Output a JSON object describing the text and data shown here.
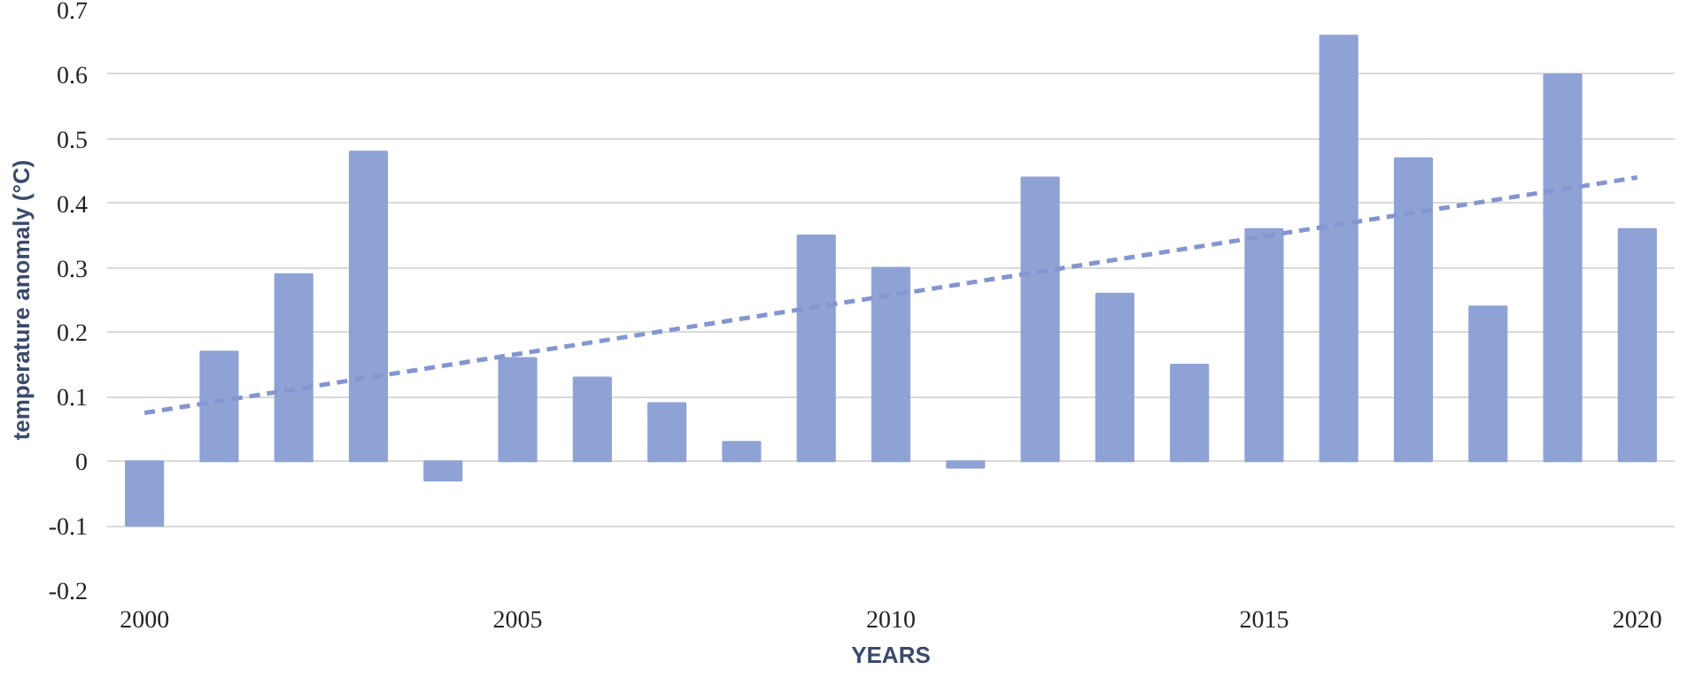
{
  "chart_data": {
    "type": "bar",
    "xlabel": "YEARS",
    "ylabel": "temperature anomaly (°C)",
    "x": [
      2000,
      2001,
      2002,
      2003,
      2004,
      2005,
      2006,
      2007,
      2008,
      2009,
      2010,
      2011,
      2012,
      2013,
      2014,
      2015,
      2016,
      2017,
      2018,
      2019,
      2020
    ],
    "series": [
      {
        "color": "#8fa2d6",
        "values": [
          -0.1,
          0.17,
          0.29,
          0.48,
          -0.03,
          0.16,
          0.13,
          0.09,
          0.03,
          0.35,
          0.3,
          -0.01,
          0.44,
          0.26,
          0.15,
          0.36,
          0.66,
          0.47,
          0.24,
          0.6,
          0.36
        ]
      },
      {
        "type": "line",
        "color": "#8496d0",
        "line_style": "dashed",
        "x": [
          2000,
          2020
        ],
        "values": [
          0.075,
          0.44
        ]
      }
    ],
    "xlim": [
      1999.5,
      2020.5
    ],
    "xticks": [
      2000,
      2005,
      2010,
      2015,
      2020
    ],
    "ylim": [
      -0.2,
      0.7
    ],
    "yticks": [
      -0.2,
      -0.1,
      0,
      0.1,
      0.2,
      0.3,
      0.4,
      0.5,
      0.6,
      0.7
    ],
    "grid": "y"
  }
}
